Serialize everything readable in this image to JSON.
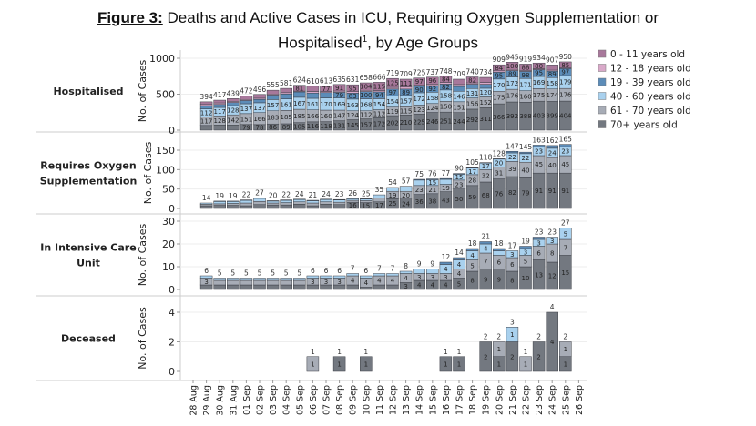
{
  "title": {
    "figure_label": "Figure 3:",
    "line1": " Deaths and Active Cases in ICU, Requiring Oxygen Supplementation or",
    "line2": "Hospitalised",
    "superscript": "1",
    "line2_rest": ", by Age Groups"
  },
  "chart_data": {
    "type": "bar",
    "stacked": true,
    "categories": [
      "28 Aug",
      "29 Aug",
      "30 Aug",
      "31 Aug",
      "01 Sep",
      "02 Sep",
      "03 Sep",
      "04 Sep",
      "05 Sep",
      "06 Sep",
      "07 Sep",
      "08 Sep",
      "09 Sep",
      "10 Sep",
      "11 Sep",
      "12 Sep",
      "13 Sep",
      "14 Sep",
      "15 Sep",
      "16 Sep",
      "17 Sep",
      "18 Sep",
      "19 Sep",
      "20 Sep",
      "21 Sep",
      "22 Sep",
      "23 Sep",
      "24 Sep",
      "25 Sep",
      "26 Sep"
    ],
    "bar_dates_from": "29 Aug",
    "bar_dates_to": "25 Sep",
    "legend": {
      "placement": "right",
      "entries": [
        {
          "name": "0 - 11 years old",
          "color": "#a8789b"
        },
        {
          "name": "12 - 18 years old",
          "color": "#d9a9c9"
        },
        {
          "name": "19 - 39 years old",
          "color": "#5c8cb8"
        },
        {
          "name": "40 - 60 years old",
          "color": "#a9d1ee"
        },
        {
          "name": "61 - 70 years old",
          "color": "#a7acb6"
        },
        {
          "name": "70+ years old",
          "color": "#737880"
        }
      ]
    },
    "stack_order": [
      "70+ years old",
      "61 - 70 years old",
      "40 - 60 years old",
      "19 - 39 years old",
      "12 - 18 years old",
      "0 - 11 years old"
    ],
    "panels": [
      {
        "label": "Hospitalised",
        "ylabel": "No. of Cases",
        "ylim": [
          0,
          1000
        ],
        "yticks": [
          0,
          500,
          1000
        ],
        "totals": [
          394,
          417,
          439,
          472,
          496,
          555,
          581,
          624,
          610,
          613,
          635,
          631,
          658,
          666,
          719,
          709,
          725,
          737,
          748,
          709,
          740,
          734,
          909,
          945,
          919,
          934,
          907,
          950
        ],
        "series": [
          [
            66,
            71,
            71,
            79,
            78,
            86,
            89,
            105,
            116,
            118,
            131,
            145,
            157,
            172,
            202,
            210,
            225,
            246,
            251,
            244,
            292,
            311,
            366,
            392,
            388,
            403,
            399,
            404
          ],
          [
            117,
            128,
            142,
            151,
            166,
            183,
            185,
            185,
            166,
            160,
            147,
            124,
            112,
            112,
            119,
            115,
            123,
            124,
            150,
            151,
            156,
            152,
            175,
            176,
            160,
            175,
            174,
            176
          ],
          [
            112,
            117,
            128,
            137,
            137,
            157,
            161,
            167,
            161,
            170,
            169,
            163,
            168,
            154,
            154,
            157,
            172,
            158,
            158,
            146,
            131,
            120,
            170,
            172,
            171,
            169,
            158,
            179
          ],
          [
            41,
            41,
            44,
            45,
            47,
            62,
            68,
            75,
            73,
            74,
            79,
            83,
            100,
            94,
            97,
            89,
            90,
            92,
            82,
            67,
            60,
            55,
            95,
            89,
            98,
            95,
            89,
            97
          ],
          [
            20,
            22,
            16,
            15,
            16,
            15,
            18,
            11,
            21,
            14,
            18,
            21,
            17,
            19,
            22,
            27,
            18,
            21,
            23,
            26,
            19,
            25,
            19,
            16,
            14,
            12,
            15,
            9
          ],
          [
            38,
            38,
            38,
            45,
            52,
            52,
            60,
            81,
            73,
            77,
            91,
            95,
            104,
            115,
            125,
            111,
            97,
            96,
            84,
            75,
            82,
            71,
            84,
            100,
            88,
            80,
            72,
            85
          ]
        ]
      },
      {
        "label": "Requires Oxygen Supplementation",
        "label_lines": [
          "Requires Oxygen",
          "Supplementation"
        ],
        "ylabel": "No. of Cases",
        "ylim": [
          0,
          170
        ],
        "yticks": [
          0,
          50,
          100,
          150
        ],
        "totals": [
          14,
          19,
          19,
          22,
          27,
          20,
          22,
          24,
          21,
          24,
          23,
          26,
          25,
          35,
          54,
          57,
          75,
          76,
          77,
          90,
          105,
          118,
          128,
          147,
          145,
          163,
          162,
          165
        ],
        "series": [
          [
            7,
            8,
            8,
            7,
            10,
            9,
            9,
            11,
            7,
            11,
            10,
            16,
            15,
            17,
            25,
            24,
            36,
            38,
            43,
            50,
            59,
            68,
            76,
            82,
            79,
            91,
            91,
            91
          ],
          [
            4,
            4,
            5,
            7,
            8,
            5,
            6,
            6,
            7,
            6,
            6,
            5,
            5,
            10,
            19,
            20,
            23,
            21,
            19,
            23,
            28,
            32,
            31,
            39,
            40,
            45,
            40,
            45
          ],
          [
            3,
            6,
            5,
            7,
            8,
            5,
            6,
            6,
            6,
            6,
            6,
            4,
            4,
            8,
            10,
            13,
            14,
            15,
            13,
            15,
            17,
            17,
            20,
            22,
            22,
            23,
            24,
            23
          ],
          [
            0,
            1,
            1,
            1,
            1,
            1,
            1,
            1,
            1,
            1,
            1,
            1,
            1,
            0,
            0,
            0,
            2,
            2,
            2,
            2,
            1,
            1,
            1,
            4,
            4,
            4,
            7,
            6
          ],
          [
            0,
            0,
            0,
            0,
            0,
            0,
            0,
            0,
            0,
            0,
            0,
            0,
            0,
            0,
            0,
            0,
            0,
            0,
            0,
            0,
            0,
            0,
            0,
            0,
            0,
            0,
            0,
            0
          ],
          [
            0,
            0,
            0,
            0,
            0,
            0,
            0,
            0,
            0,
            0,
            0,
            0,
            0,
            0,
            0,
            0,
            0,
            0,
            0,
            0,
            0,
            0,
            0,
            0,
            0,
            0,
            0,
            0
          ]
        ]
      },
      {
        "label": "In Intensive Care Unit",
        "label_lines": [
          "In Intensive Care",
          "Unit"
        ],
        "ylabel": "",
        "ylim": [
          0,
          30
        ],
        "yticks": [
          0,
          10,
          20,
          30
        ],
        "totals": [
          6,
          5,
          5,
          5,
          5,
          5,
          5,
          5,
          6,
          6,
          6,
          7,
          6,
          7,
          7,
          8,
          9,
          9,
          12,
          14,
          18,
          21,
          18,
          17,
          19,
          23,
          23,
          27
        ],
        "series": [
          [
            2,
            2,
            2,
            2,
            2,
            2,
            2,
            2,
            2,
            2,
            2,
            2,
            1,
            2,
            2,
            3,
            4,
            4,
            4,
            5,
            8,
            9,
            9,
            8,
            10,
            13,
            12,
            15
          ],
          [
            3,
            2,
            2,
            2,
            2,
            2,
            2,
            2,
            3,
            3,
            3,
            4,
            4,
            4,
            4,
            4,
            3,
            3,
            3,
            4,
            5,
            7,
            6,
            6,
            5,
            6,
            8,
            7
          ],
          [
            1,
            1,
            1,
            1,
            1,
            1,
            1,
            1,
            1,
            1,
            1,
            1,
            1,
            1,
            1,
            1,
            2,
            2,
            4,
            4,
            4,
            4,
            2,
            3,
            3,
            3,
            3,
            5
          ],
          [
            0,
            0,
            0,
            0,
            0,
            0,
            0,
            0,
            0,
            0,
            0,
            0,
            0,
            0,
            0,
            0,
            0,
            0,
            1,
            1,
            1,
            1,
            1,
            0,
            1,
            1,
            0,
            0
          ],
          [
            0,
            0,
            0,
            0,
            0,
            0,
            0,
            0,
            0,
            0,
            0,
            0,
            0,
            0,
            0,
            0,
            0,
            0,
            0,
            0,
            0,
            0,
            0,
            0,
            0,
            0,
            0,
            0
          ],
          [
            0,
            0,
            0,
            0,
            0,
            0,
            0,
            0,
            0,
            0,
            0,
            0,
            0,
            0,
            0,
            0,
            0,
            0,
            0,
            0,
            0,
            0,
            0,
            0,
            0,
            0,
            0,
            0
          ]
        ]
      },
      {
        "label": "Deceased",
        "ylabel": "No. of Cases",
        "ylim": [
          0,
          4.4
        ],
        "yticks": [
          0,
          2,
          4
        ],
        "totals": [
          null,
          null,
          null,
          null,
          null,
          null,
          null,
          null,
          1,
          null,
          1,
          null,
          1,
          null,
          null,
          null,
          null,
          null,
          1,
          1,
          null,
          2,
          2,
          3,
          1,
          2,
          4,
          2
        ],
        "series": [
          [
            0,
            0,
            0,
            0,
            0,
            0,
            0,
            0,
            0,
            0,
            1,
            0,
            1,
            0,
            0,
            0,
            0,
            0,
            1,
            1,
            0,
            2,
            1,
            2,
            0,
            2,
            4,
            1
          ],
          [
            0,
            0,
            0,
            0,
            0,
            0,
            0,
            0,
            1,
            0,
            0,
            0,
            0,
            0,
            0,
            0,
            0,
            0,
            0,
            0,
            0,
            0,
            1,
            0,
            1,
            0,
            0,
            1
          ],
          [
            0,
            0,
            0,
            0,
            0,
            0,
            0,
            0,
            0,
            0,
            0,
            0,
            0,
            0,
            0,
            0,
            0,
            0,
            0,
            0,
            0,
            0,
            0,
            1,
            0,
            0,
            0,
            0
          ],
          [
            0,
            0,
            0,
            0,
            0,
            0,
            0,
            0,
            0,
            0,
            0,
            0,
            0,
            0,
            0,
            0,
            0,
            0,
            0,
            0,
            0,
            0,
            0,
            0,
            0,
            0,
            0,
            0
          ],
          [
            0,
            0,
            0,
            0,
            0,
            0,
            0,
            0,
            0,
            0,
            0,
            0,
            0,
            0,
            0,
            0,
            0,
            0,
            0,
            0,
            0,
            0,
            0,
            0,
            0,
            0,
            0,
            0
          ],
          [
            0,
            0,
            0,
            0,
            0,
            0,
            0,
            0,
            0,
            0,
            0,
            0,
            0,
            0,
            0,
            0,
            0,
            0,
            0,
            0,
            0,
            0,
            0,
            0,
            0,
            0,
            0,
            0
          ]
        ]
      }
    ]
  }
}
